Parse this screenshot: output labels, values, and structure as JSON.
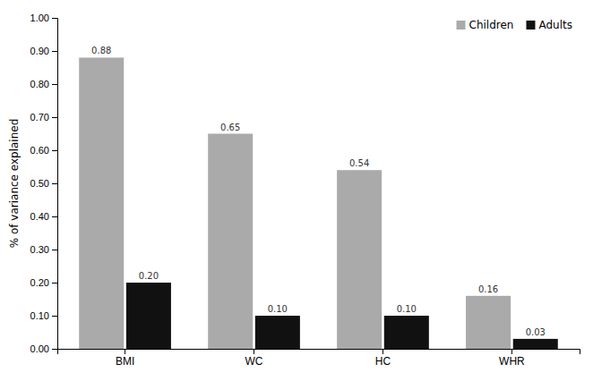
{
  "chart_data": {
    "type": "bar",
    "categories": [
      "BMI",
      "WC",
      "HC",
      "WHR"
    ],
    "series": [
      {
        "name": "Children",
        "color": "#AAAAAA",
        "values": [
          0.88,
          0.65,
          0.54,
          0.16
        ],
        "value_labels": [
          "0.88",
          "0.65",
          "0.54",
          "0.16"
        ]
      },
      {
        "name": "Adults",
        "color": "#111111",
        "values": [
          0.2,
          0.1,
          0.1,
          0.03
        ],
        "value_labels": [
          "0.20",
          "0.10",
          "0.10",
          "0.03"
        ]
      }
    ],
    "y_label": "% of variance explained",
    "ylim": [
      0.0,
      1.0
    ],
    "yticks": [
      {
        "value": 0,
        "label": "0.00"
      },
      {
        "value": 0.1,
        "label": "0.10"
      },
      {
        "value": 0.2,
        "label": "0.20"
      },
      {
        "value": 0.3,
        "label": "0.30"
      },
      {
        "value": 0.4,
        "label": "0.40"
      },
      {
        "value": 0.5,
        "label": "0.50"
      },
      {
        "value": 0.6,
        "label": "0.60"
      },
      {
        "value": 0.7,
        "label": "0.70"
      },
      {
        "value": 0.8,
        "label": "0.80"
      },
      {
        "value": 0.9,
        "label": "0.90"
      },
      {
        "value": 1,
        "label": "1.00"
      }
    ],
    "grid": false,
    "legend": "upper right",
    "data_labels": true
  }
}
